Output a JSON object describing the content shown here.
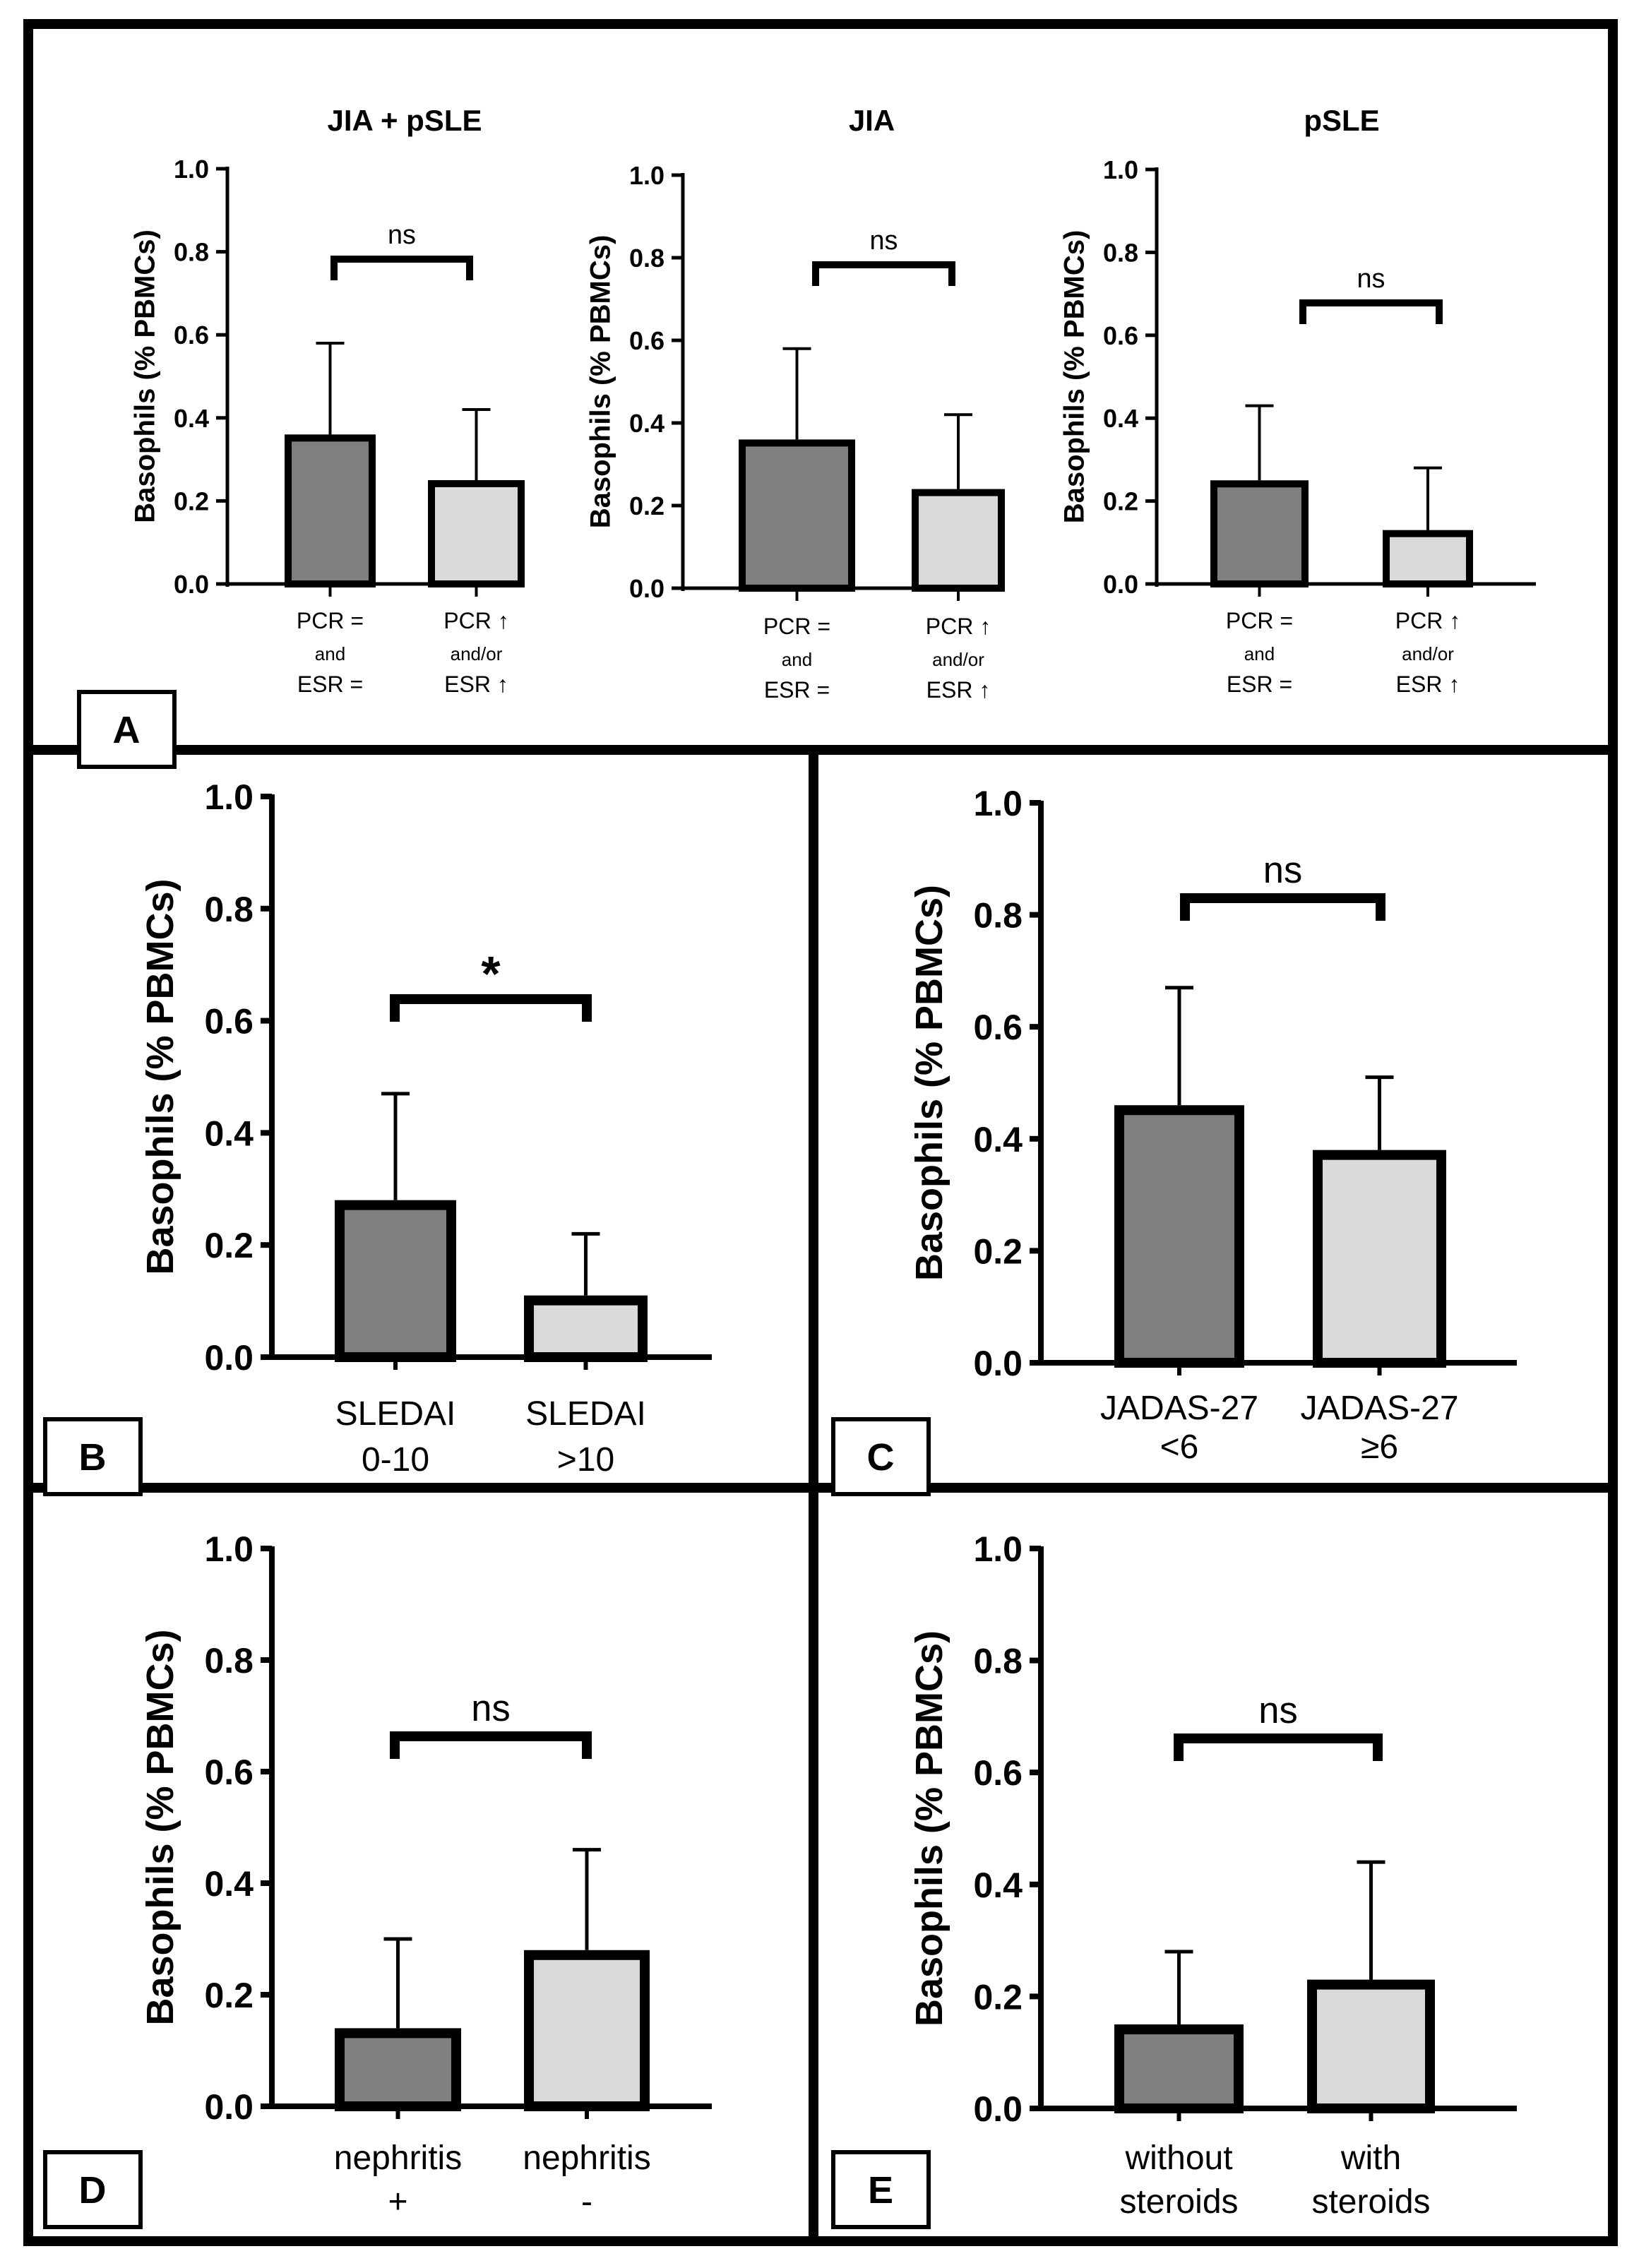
{
  "colors": {
    "dark_bar": "#7f7f7f",
    "light_bar": "#d9d9d9",
    "ink": "#000000"
  },
  "chart_data": [
    {
      "panel": "A",
      "type": "bar",
      "title": "JIA + pSLE",
      "ylabel": "Basophils (% PBMCs)",
      "ylim": [
        0,
        1.0
      ],
      "yticks": [
        "0.0",
        "0.2",
        "0.4",
        "0.6",
        "0.8",
        "1.0"
      ],
      "categories": [
        [
          "PCR =",
          "and",
          "ESR ="
        ],
        [
          "PCR ↑",
          "and/or",
          "ESR ↑"
        ]
      ],
      "values": [
        0.36,
        0.25
      ],
      "errors": [
        0.22,
        0.17
      ],
      "significance": "ns"
    },
    {
      "panel": "",
      "type": "bar",
      "title": "JIA",
      "ylabel": "Basophils (% PBMCs)",
      "ylim": [
        0,
        1.0
      ],
      "yticks": [
        "0.0",
        "0.2",
        "0.4",
        "0.6",
        "0.8",
        "1.0"
      ],
      "categories": [
        [
          "PCR =",
          "and",
          "ESR ="
        ],
        [
          "PCR ↑",
          "and/or",
          "ESR ↑"
        ]
      ],
      "values": [
        0.36,
        0.24
      ],
      "errors": [
        0.22,
        0.18
      ],
      "significance": "ns"
    },
    {
      "panel": "",
      "type": "bar",
      "title": "pSLE",
      "ylabel": "Basophils (% PBMCs)",
      "ylim": [
        0,
        1.0
      ],
      "yticks": [
        "0.0",
        "0.2",
        "0.4",
        "0.6",
        "0.8",
        "1.0"
      ],
      "categories": [
        [
          "PCR =",
          "and",
          "ESR ="
        ],
        [
          "PCR ↑",
          "and/or",
          "ESR ↑"
        ]
      ],
      "values": [
        0.25,
        0.13
      ],
      "errors": [
        0.18,
        0.15
      ],
      "significance": "ns"
    },
    {
      "panel": "B",
      "type": "bar",
      "title": "",
      "ylabel": "Basophils (% PBMCs)",
      "ylim": [
        0,
        1.0
      ],
      "yticks": [
        "0.0",
        "0.2",
        "0.4",
        "0.6",
        "0.8",
        "1.0"
      ],
      "categories": [
        [
          "SLEDAI",
          "0-10"
        ],
        [
          "SLEDAI",
          ">10"
        ]
      ],
      "values": [
        0.28,
        0.11
      ],
      "errors": [
        0.19,
        0.11
      ],
      "significance": "*"
    },
    {
      "panel": "C",
      "type": "bar",
      "title": "",
      "ylabel": "Basophils (% PBMCs)",
      "ylim": [
        0,
        1.0
      ],
      "yticks": [
        "0.0",
        "0.2",
        "0.4",
        "0.6",
        "0.8",
        "1.0"
      ],
      "categories": [
        [
          "JADAS-27",
          "<6"
        ],
        [
          "JADAS-27",
          "≥6"
        ]
      ],
      "values": [
        0.46,
        0.38
      ],
      "errors": [
        0.21,
        0.13
      ],
      "significance": "ns"
    },
    {
      "panel": "D",
      "type": "bar",
      "title": "",
      "ylabel": "Basophils (% PBMCs)",
      "ylim": [
        0,
        1.0
      ],
      "yticks": [
        "0.0",
        "0.2",
        "0.4",
        "0.6",
        "0.8",
        "1.0"
      ],
      "categories": [
        [
          "nephritis",
          "+"
        ],
        [
          "nephritis",
          "-"
        ]
      ],
      "values": [
        0.14,
        0.28
      ],
      "errors": [
        0.16,
        0.18
      ],
      "significance": "ns"
    },
    {
      "panel": "E",
      "type": "bar",
      "title": "",
      "ylabel": "Basophils (% PBMCs)",
      "ylim": [
        0,
        1.0
      ],
      "yticks": [
        "0.0",
        "0.2",
        "0.4",
        "0.6",
        "0.8",
        "1.0"
      ],
      "categories": [
        [
          "without",
          "steroids"
        ],
        [
          "with",
          "steroids"
        ]
      ],
      "values": [
        0.15,
        0.23
      ],
      "errors": [
        0.13,
        0.21
      ],
      "significance": "ns"
    }
  ]
}
